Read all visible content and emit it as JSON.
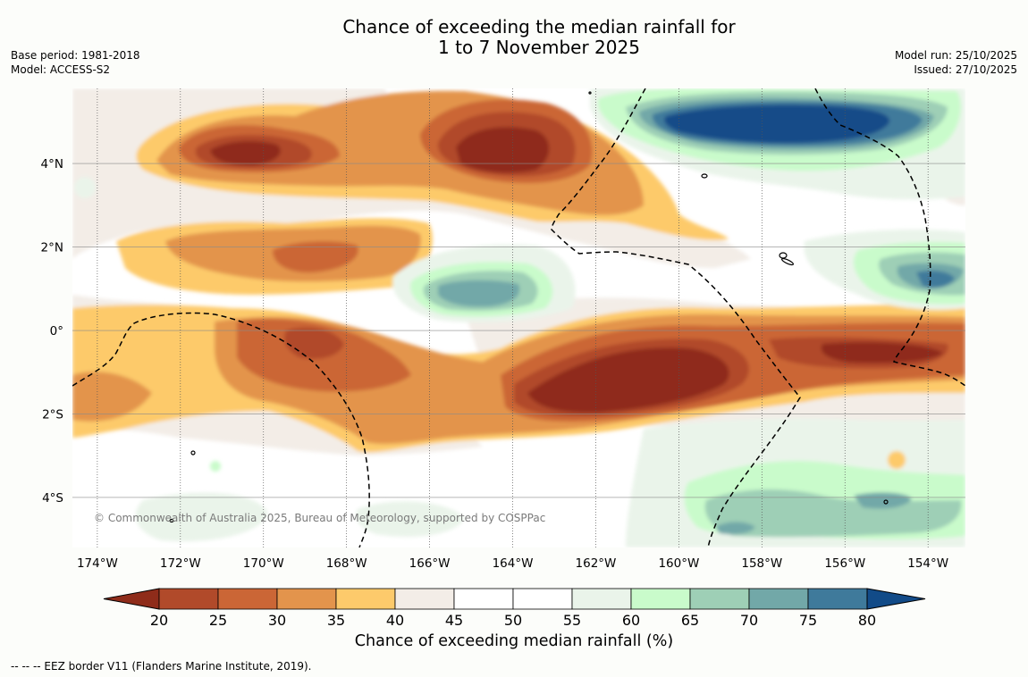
{
  "title": {
    "line1": "Chance of exceeding the median rainfall for",
    "line2": "1 to 7 November 2025"
  },
  "meta_left": {
    "base_period": "Base period: 1981-2018",
    "model": "Model: ACCESS-S2"
  },
  "meta_right": {
    "model_run": "Model run: 25/10/2025",
    "issued": "Issued: 27/10/2025"
  },
  "map": {
    "lat_labels": [
      "4°N",
      "2°N",
      "0°",
      "2°S",
      "4°S"
    ],
    "lon_labels": [
      "174°W",
      "172°W",
      "170°W",
      "168°W",
      "166°W",
      "164°W",
      "162°W",
      "160°W",
      "158°W",
      "156°W",
      "154°W"
    ],
    "copyright": "© Commonwealth of Australia 2025, Bureau of Meteorology, supported by COSPPac",
    "lat_range_deg": [
      -5.2,
      5.8
    ],
    "lon_range_deg": [
      -174.6,
      -153.1
    ]
  },
  "colorbar": {
    "labels": [
      "20",
      "25",
      "30",
      "35",
      "40",
      "45",
      "50",
      "55",
      "60",
      "65",
      "70",
      "75",
      "80"
    ],
    "colors": [
      "#8f2c1a",
      "#b14a2a",
      "#cb6636",
      "#e3944c",
      "#fdca6b",
      "#f3ede7",
      "#ffffff",
      "#ffffff",
      "#eaf4ea",
      "#c9fbcb",
      "#9ecfb6",
      "#72a8a8",
      "#3f7a9b",
      "#124b88"
    ],
    "title": "Chance of exceeding median rainfall (%)"
  },
  "footnote": "--  --  -- EEZ border V11 (Flanders Marine Institute, 2019)."
}
